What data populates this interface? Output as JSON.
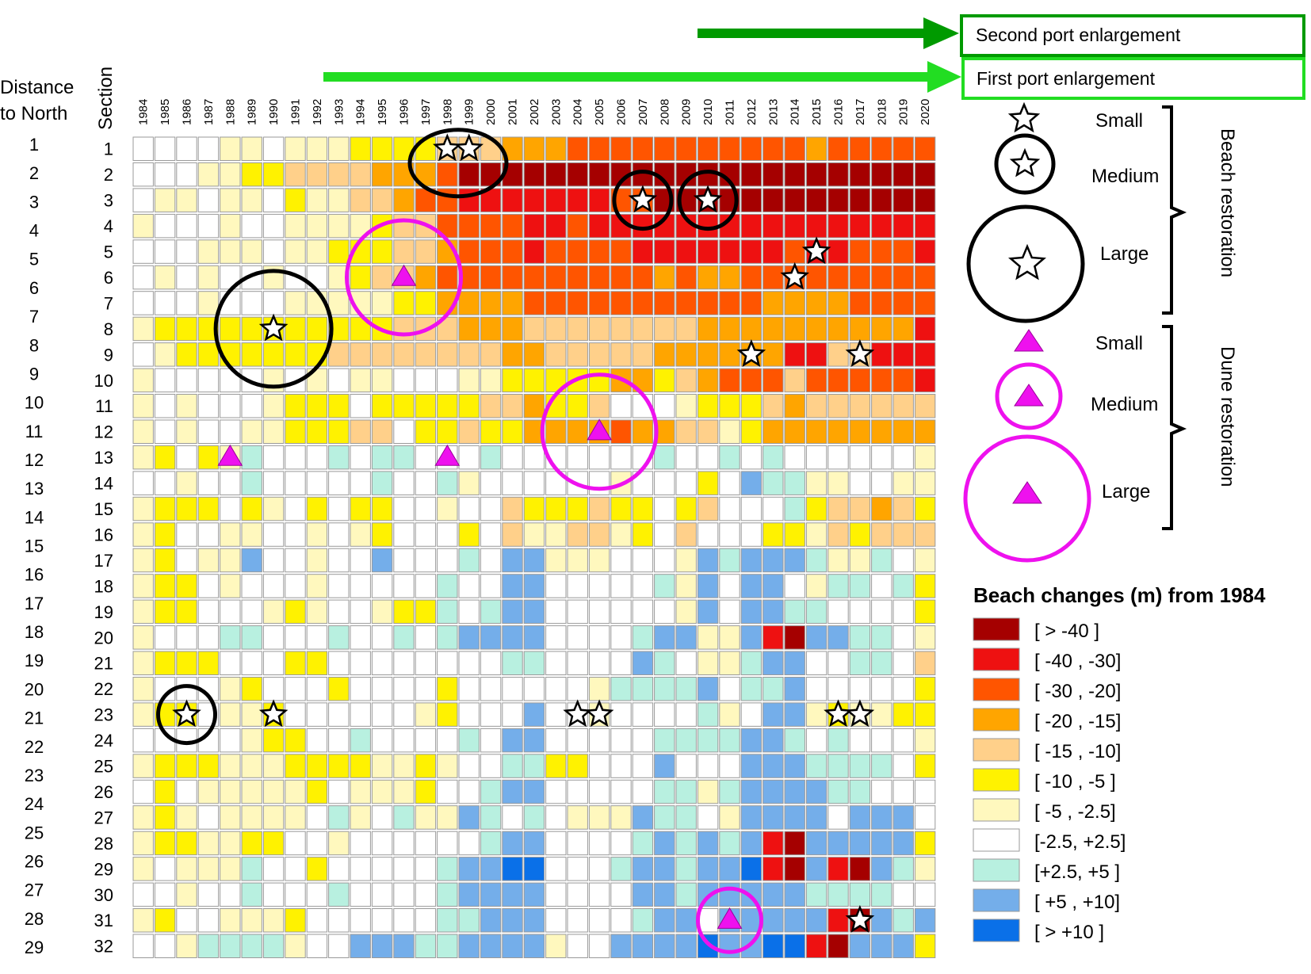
{
  "chart_data": {
    "type": "heatmap",
    "row_axis_titles": {
      "distance": [
        "Distance",
        "to North"
      ],
      "section": "Section"
    },
    "distance_labels": [
      1,
      2,
      3,
      4,
      5,
      6,
      7,
      8,
      9,
      10,
      11,
      12,
      13,
      14,
      15,
      16,
      17,
      18,
      19,
      20,
      21,
      22,
      23,
      24,
      25,
      26,
      27,
      28,
      29
    ],
    "sections": [
      1,
      2,
      3,
      4,
      5,
      6,
      7,
      8,
      9,
      10,
      11,
      12,
      13,
      14,
      15,
      16,
      17,
      18,
      19,
      20,
      21,
      22,
      23,
      24,
      25,
      26,
      27,
      28,
      29,
      30,
      31,
      32
    ],
    "years": [
      1984,
      1985,
      1986,
      1987,
      1988,
      1989,
      1990,
      1991,
      1992,
      1993,
      1994,
      1995,
      1996,
      1997,
      1998,
      1999,
      2000,
      2001,
      2002,
      2003,
      2004,
      2005,
      2006,
      2007,
      2008,
      2009,
      2010,
      2011,
      2012,
      2013,
      2014,
      2015,
      2016,
      2017,
      2018,
      2019,
      2020
    ],
    "legend": {
      "title": "Beach changes (m) from 1984",
      "classes": [
        {
          "label": "[ > -40 ]",
          "color": "#A50000"
        },
        {
          "label": "[ -40 , -30]",
          "color": "#EE1111"
        },
        {
          "label": "[ -30 , -20]",
          "color": "#FF5500"
        },
        {
          "label": "[ -20 , -15]",
          "color": "#FFA500"
        },
        {
          "label": "[ -15 ,  -10]",
          "color": "#FFD08A"
        },
        {
          "label": "[  -10 ,  -5 ]",
          "color": "#FFF200"
        },
        {
          "label": "[   -5  , -2.5]",
          "color": "#FFF8BE"
        },
        {
          "label": "[-2.5, +2.5]",
          "color": "#FFFFFF"
        },
        {
          "label": "[+2.5,  +5 ]",
          "color": "#B8F0E0"
        },
        {
          "label": "[  +5  , +10]",
          "color": "#74AEEA"
        },
        {
          "label": "[ > +10 ]",
          "color": "#0A70E8"
        }
      ]
    },
    "matrix": [
      "7777667666555544433322222222222322222",
      "7776655444433320000000000000000000000",
      "7667667566443221111111220000000000000",
      "6777677666654422221121111111111111111",
      "7776667665554432221222211111112112221",
      "7676776776544322222222223233222222222",
      "7776777666665533332222222222233332222",
      "6555555555554443334444444433333333331",
      "7655555554444444433444443333331144111",
      "6777776767667776655555335432224222221",
      "6767776555755555443554777655543444444",
      "6767766555447554553333233446533333333",
      "6575687778788777877777778778787777776",
      "7767787777787786777777677757988667766",
      "6555756757557767745554557547778544345",
      "6577667767657775746644657477755645444",
      "6576697767797778799666777698999866876",
      "6557677767777787799777778697997688785",
      "6557776567765587899777777697998877775",
      "6777887778778789999777789966910998876",
      "6555777557777777788777798766899778874",
      "6777657775777757777776888897889777775",
      "6557665777777657779776777786799656655",
      "7777765577877778799777778888998787776",
      "6555666555566567788557779777999888875",
      "7576666657666577899777778868999988777",
      "6567666678678669878766698876999979997",
      "6556655776777777899777789898910999995",
      "6766687757777789910107778998991010910986",
      "7767787778777789999777799899999888877",
      "6577666577777788999777789979999910989",
      "7768888677999889999677999910991010109995"
    ],
    "annotations": {
      "port_enlargements": [
        {
          "label": "Second port enlargement",
          "color": "#009A00",
          "from_year": 2011
        },
        {
          "label": "First port enlargement",
          "color": "#22DD22",
          "from_year": 1992
        }
      ],
      "beach_restoration": {
        "label": "Beach restoration",
        "sizes": [
          "Small",
          "Medium",
          "Large"
        ],
        "events": [
          {
            "year": 1998,
            "section": 1,
            "size": "Medium"
          },
          {
            "year": 1999,
            "section": 1,
            "size": "Medium"
          },
          {
            "year": 2007,
            "section": 3,
            "size": "Medium"
          },
          {
            "year": 2010,
            "section": 3,
            "size": "Medium"
          },
          {
            "year": 2015,
            "section": 5,
            "size": "Small"
          },
          {
            "year": 2014,
            "section": 6,
            "size": "Small"
          },
          {
            "year": 1990,
            "section": 8,
            "size": "Large"
          },
          {
            "year": 2012,
            "section": 9,
            "size": "Small"
          },
          {
            "year": 2017,
            "section": 9,
            "size": "Small"
          },
          {
            "year": 1986,
            "section": 23,
            "size": "Medium"
          },
          {
            "year": 1990,
            "section": 23,
            "size": "Small"
          },
          {
            "year": 2004,
            "section": 23,
            "size": "Small"
          },
          {
            "year": 2005,
            "section": 23,
            "size": "Small"
          },
          {
            "year": 2016,
            "section": 23,
            "size": "Small"
          },
          {
            "year": 2017,
            "section": 23,
            "size": "Small"
          },
          {
            "year": 2017,
            "section": 31,
            "size": "Small"
          }
        ]
      },
      "dune_restoration": {
        "label": "Dune restoration",
        "sizes": [
          "Small",
          "Medium",
          "Large"
        ],
        "events": [
          {
            "year": 1996,
            "section": 6,
            "size": "Large"
          },
          {
            "year": 2005,
            "section": 12,
            "size": "Large"
          },
          {
            "year": 1988,
            "section": 13,
            "size": "Small"
          },
          {
            "year": 1998,
            "section": 13,
            "size": "Small"
          },
          {
            "year": 2011,
            "section": 31,
            "size": "Medium"
          }
        ]
      }
    }
  }
}
